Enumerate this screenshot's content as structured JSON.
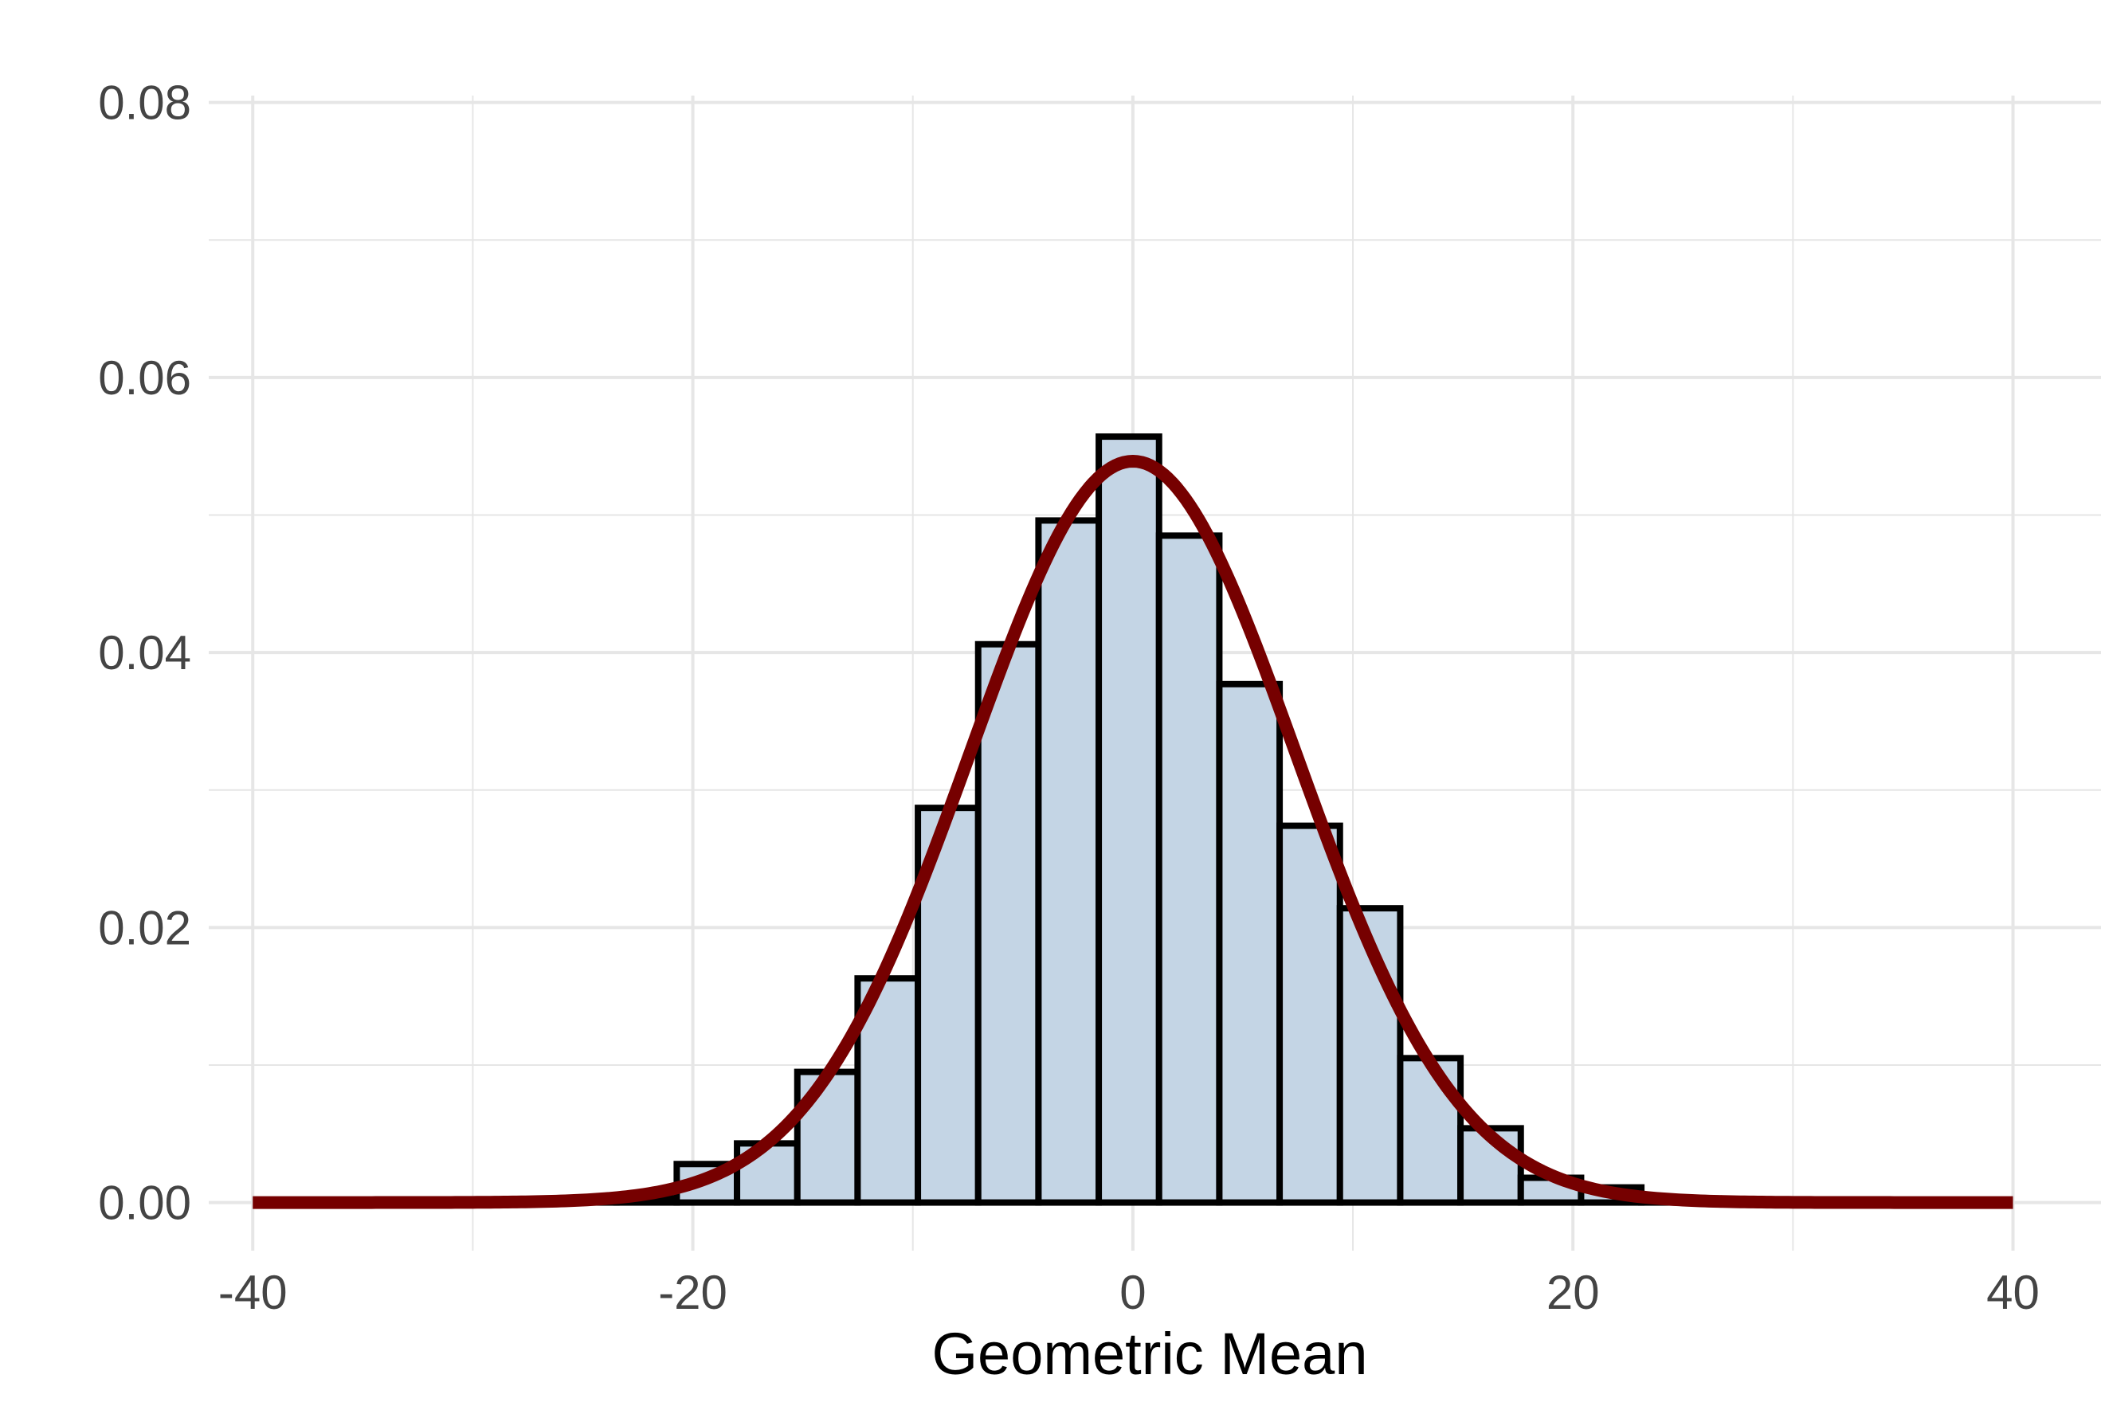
{
  "chart_data": {
    "type": "bar",
    "title": "",
    "xlabel": "Geometric Mean",
    "ylabel": "",
    "xlim": [
      -42,
      44
    ],
    "ylim": [
      -0.0035,
      0.0805
    ],
    "x_ticks": [
      -40,
      -20,
      0,
      20,
      40
    ],
    "x_tick_labels": [
      "-40",
      "-20",
      "0",
      "20",
      "40"
    ],
    "y_ticks": [
      0,
      0.02,
      0.04,
      0.06,
      0.08
    ],
    "y_tick_labels": [
      "0.00",
      "0.02",
      "0.04",
      "0.06",
      "0.08"
    ],
    "x_minor_gridlines": [
      -30,
      -10,
      10,
      30
    ],
    "y_minor_gridlines": [
      0.01,
      0.03,
      0.05,
      0.07
    ],
    "grid": true,
    "bin_edges": [
      -26.21,
      -23.47,
      -20.73,
      -17.99,
      -15.25,
      -12.51,
      -9.77,
      -7.03,
      -4.29,
      -1.55,
      1.19,
      3.93,
      6.67,
      9.41,
      12.15,
      14.89,
      17.63,
      20.37,
      23.11,
      25.85
    ],
    "values": [
      0.0001,
      0.0003,
      0.0028,
      0.0043,
      0.0095,
      0.0163,
      0.0287,
      0.0406,
      0.0496,
      0.0557,
      0.0485,
      0.0377,
      0.0274,
      0.0214,
      0.0105,
      0.0054,
      0.0018,
      0.0011,
      0.0002
    ],
    "bar_fill": "#c4d5e5",
    "bar_stroke": "#000000",
    "density_curve": {
      "type": "line",
      "distribution": "normal",
      "mean": 0,
      "sd": 7.4,
      "x_range": [
        -40,
        40
      ],
      "color": "#760000"
    },
    "colors": {
      "grid": "#e6e6e6",
      "tick_text": "#444444",
      "title_text": "#000000"
    }
  }
}
